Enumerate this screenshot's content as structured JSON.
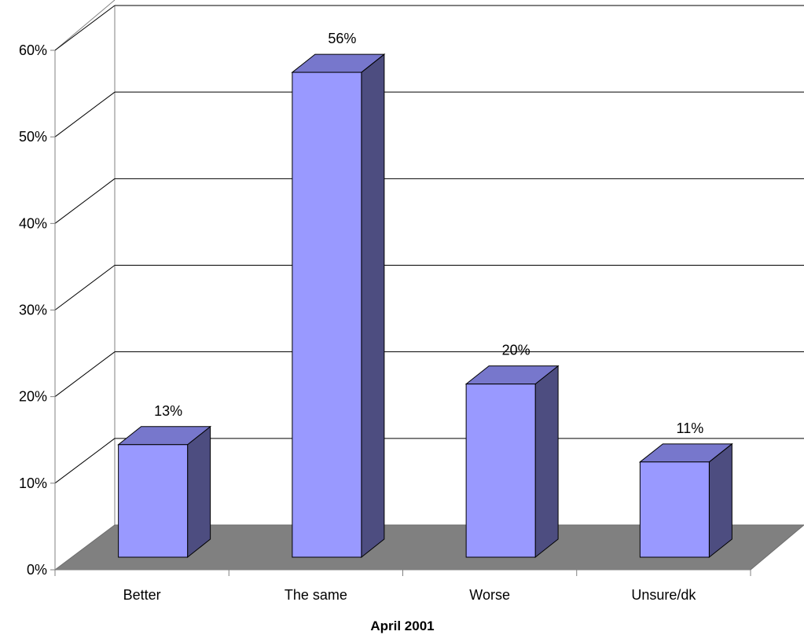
{
  "chart_data": {
    "type": "bar",
    "three_d": true,
    "categories": [
      "Better",
      "The same",
      "Worse",
      "Unsure/dk"
    ],
    "values": [
      13,
      56,
      20,
      11
    ],
    "value_labels": [
      "13%",
      "56%",
      "20%",
      "11%"
    ],
    "title": "",
    "xlabel": "April 2001",
    "ylabel": "",
    "ylim": [
      0,
      60
    ],
    "yticks": [
      0,
      10,
      20,
      30,
      40,
      50,
      60
    ],
    "ytick_labels": [
      "0%",
      "10%",
      "20%",
      "30%",
      "40%",
      "50%",
      "60%"
    ],
    "grid": true,
    "legend": "none",
    "colors": {
      "bar_front": "#9999FF",
      "bar_top": "#7777CC",
      "bar_side": "#4D4D80",
      "floor": "#808080",
      "wall_line": "#000000",
      "axis_line": "#808080"
    }
  }
}
